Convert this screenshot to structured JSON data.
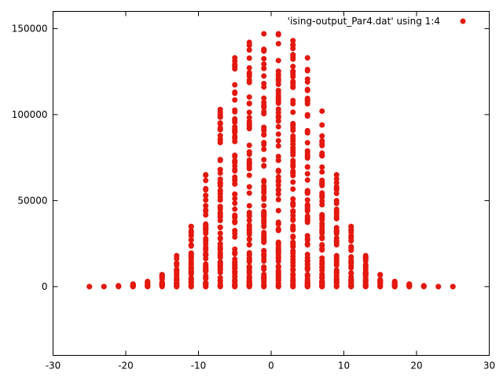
{
  "chart_data": {
    "type": "scatter",
    "xlim": [
      -30,
      30
    ],
    "ylim": [
      -40000,
      160000
    ],
    "xticks": [
      -30,
      -20,
      -10,
      0,
      10,
      20,
      30
    ],
    "yticks": [
      0,
      50000,
      100000,
      150000
    ],
    "grid": false,
    "legend_position": "top-right",
    "series": [
      {
        "name": "'ising-output_Par4.dat' using 1:4",
        "color": "#e3180f",
        "x_values": [
          -25,
          -23,
          -21,
          -19,
          -17,
          -15,
          -13,
          -11,
          -9,
          -7,
          -5,
          -3,
          -1,
          1,
          3,
          5,
          7,
          9,
          11,
          13,
          15,
          17,
          19,
          21,
          23,
          25
        ],
        "max_y": [
          0,
          0,
          500,
          1500,
          3000,
          7000,
          18000,
          35000,
          65000,
          103000,
          133000,
          142000,
          147000,
          147000,
          143000,
          133000,
          102000,
          65000,
          35000,
          18000,
          7000,
          3000,
          1500,
          500,
          0,
          0
        ]
      }
    ]
  }
}
